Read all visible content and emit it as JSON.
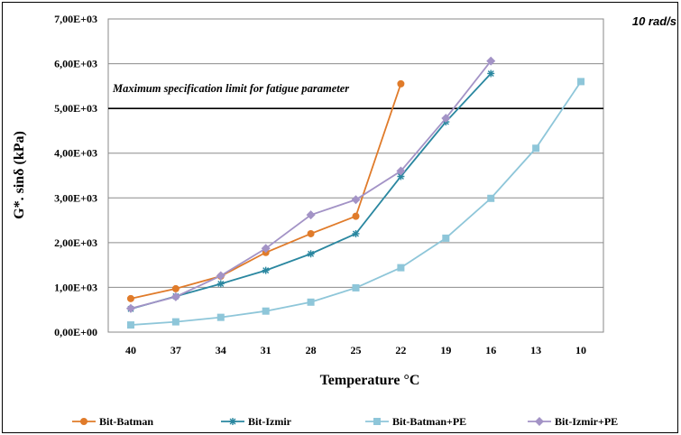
{
  "chart_data": {
    "type": "line",
    "title": "",
    "corner_label": "10 rad/s",
    "xlabel": "Temperature °C",
    "ylabel": "G*. sinδ  (kPa)",
    "categories": [
      "40",
      "37",
      "34",
      "31",
      "28",
      "25",
      "22",
      "19",
      "16",
      "13",
      "10"
    ],
    "yticks": [
      "0,00E+00",
      "1,00E+03",
      "2,00E+03",
      "3,00E+03",
      "4,00E+03",
      "5,00E+03",
      "6,00E+03",
      "7,00E+03"
    ],
    "ylim": [
      0,
      7000
    ],
    "grid": true,
    "legend": "bottom",
    "reference_line": {
      "value": 5000,
      "label": "Maximum specification limit for fatigue parameter"
    },
    "series": [
      {
        "name": "Bit-Batman",
        "color": "#e07b2a",
        "marker": "circle",
        "values": [
          750,
          970,
          1250,
          1780,
          2200,
          2590,
          5550,
          null,
          null,
          null,
          null
        ]
      },
      {
        "name": "Bit-Izmir",
        "color": "#2a87a0",
        "marker": "star",
        "values": [
          520,
          800,
          1080,
          1380,
          1750,
          2200,
          3480,
          4700,
          5780,
          null,
          null
        ]
      },
      {
        "name": "Bit-Batman+PE",
        "color": "#8ec6d9",
        "marker": "square",
        "values": [
          160,
          230,
          330,
          470,
          670,
          990,
          1440,
          2100,
          2990,
          4110,
          5600
        ]
      },
      {
        "name": "Bit-Izmir+PE",
        "color": "#a393c6",
        "marker": "diamond",
        "values": [
          530,
          790,
          1260,
          1870,
          2620,
          2960,
          3600,
          4780,
          6060,
          null,
          null
        ]
      }
    ]
  }
}
